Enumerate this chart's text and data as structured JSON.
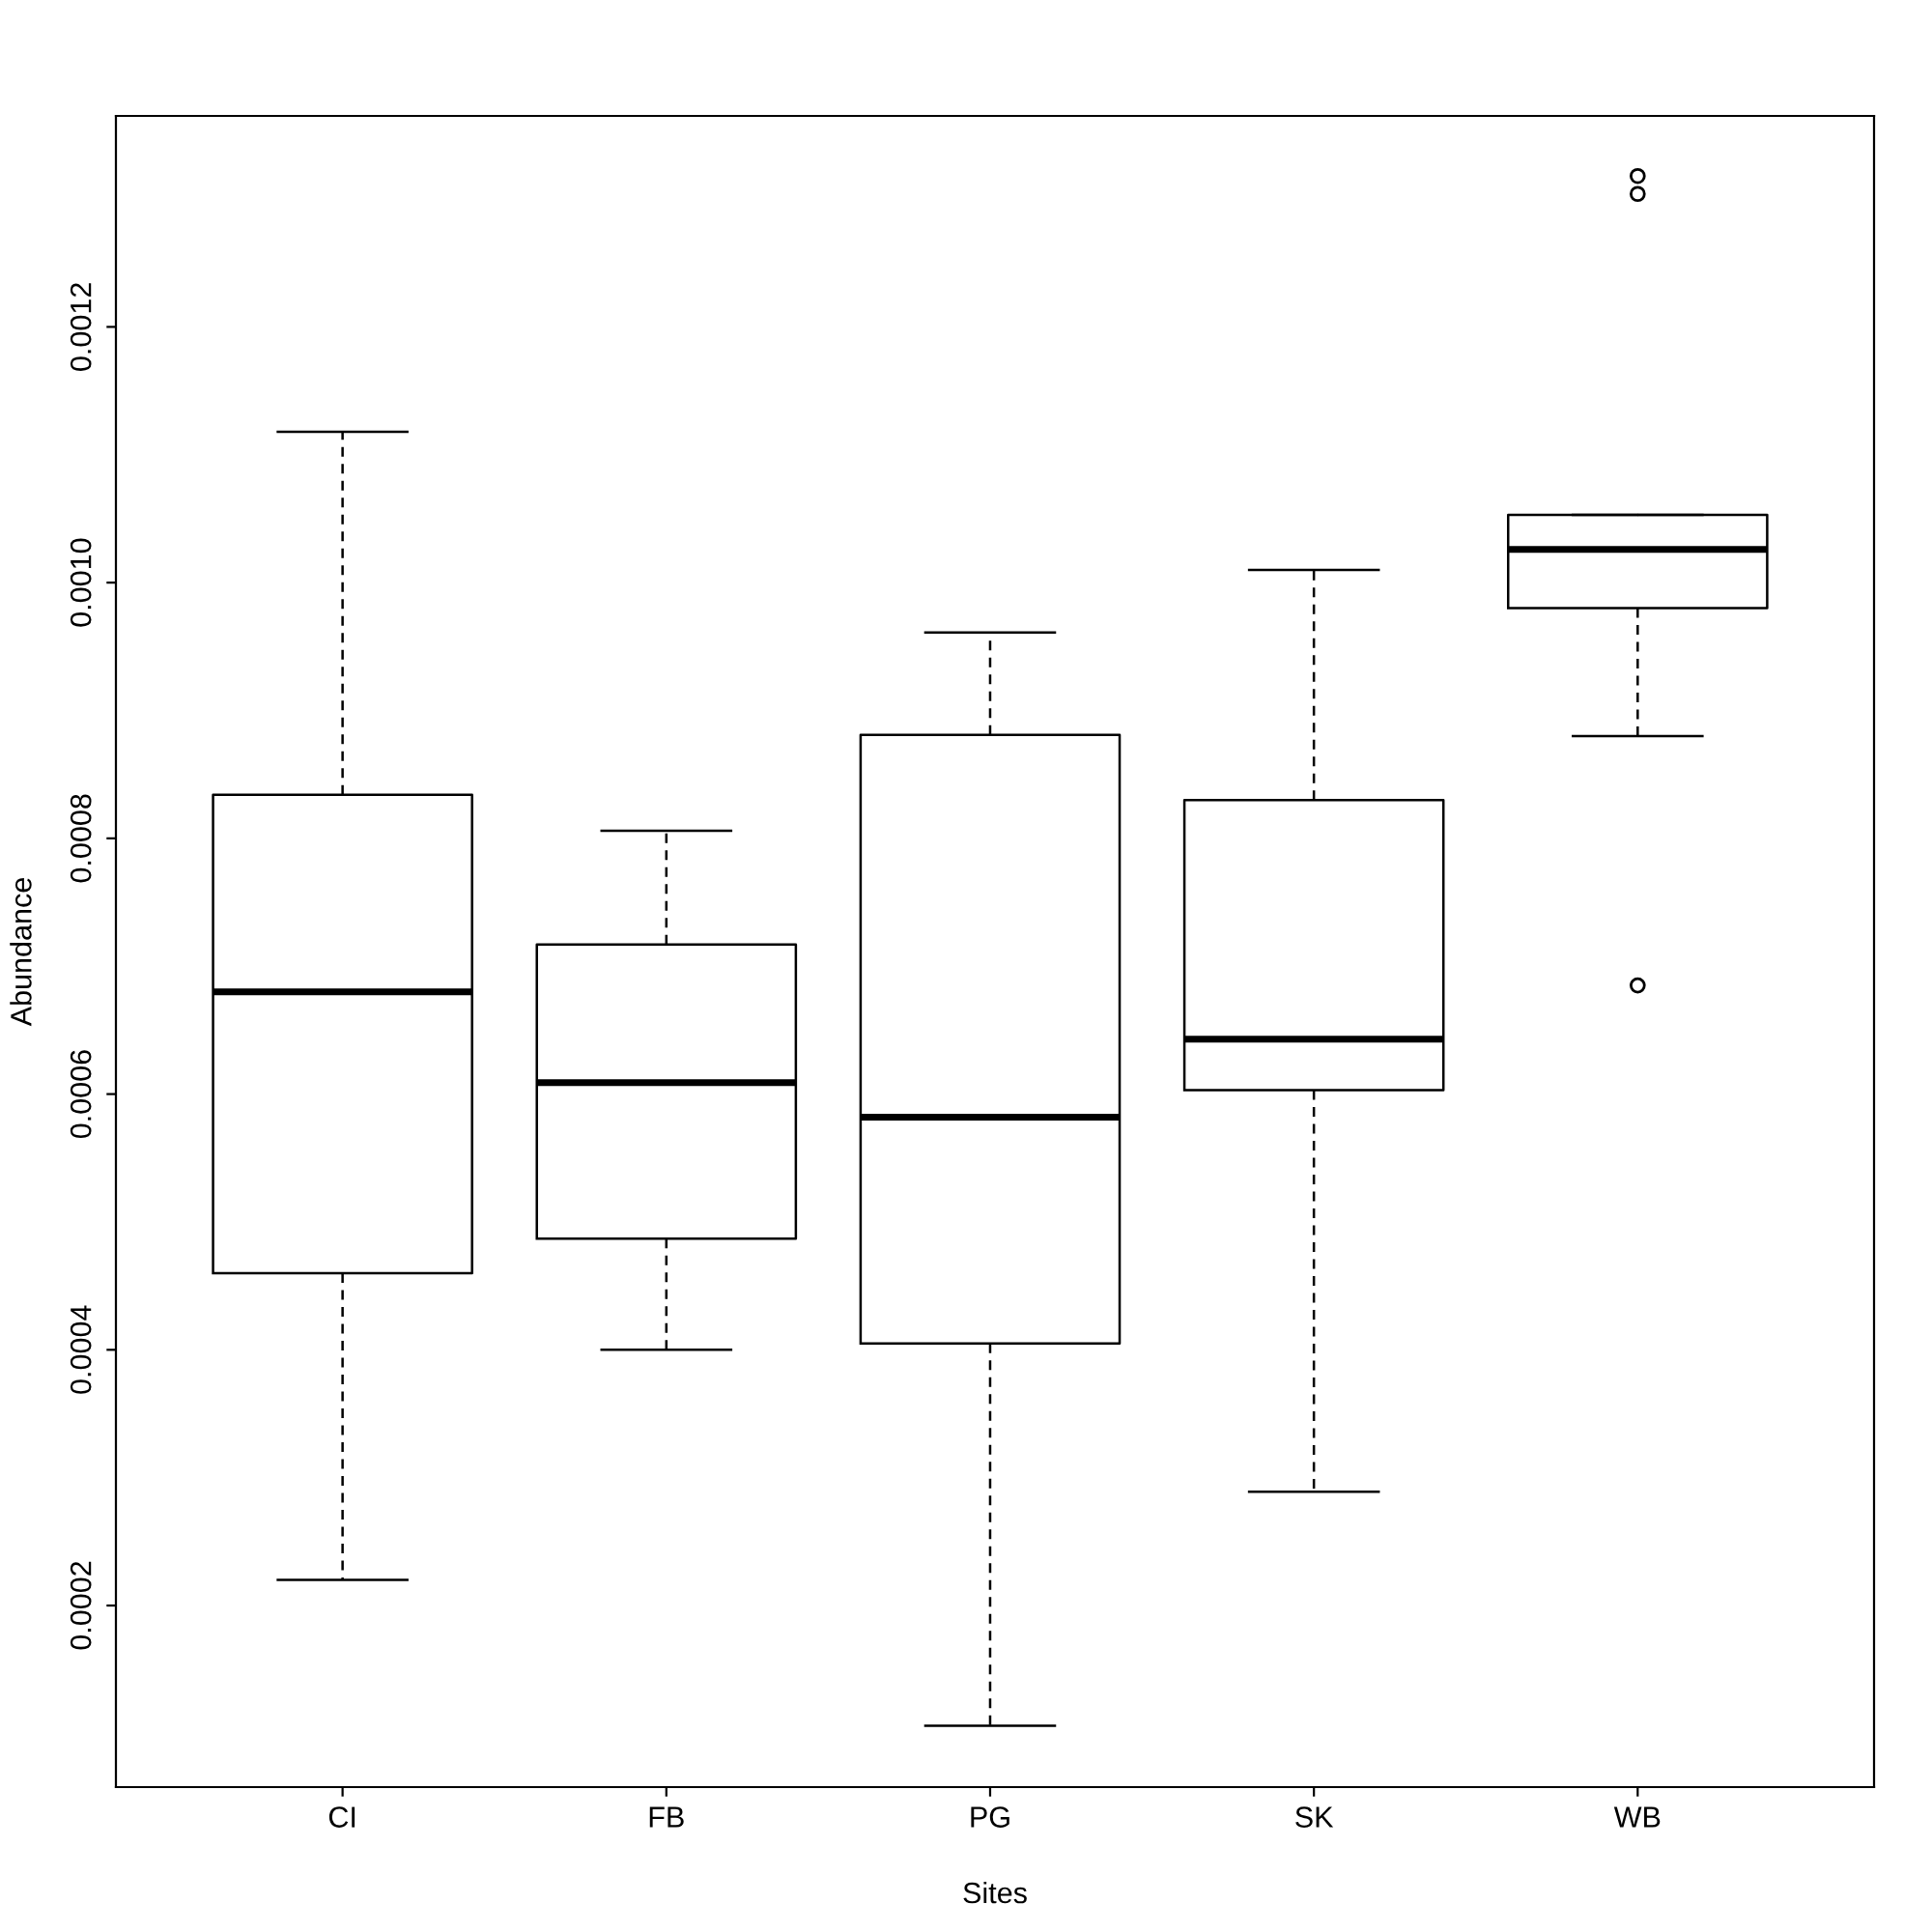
{
  "chart_data": {
    "type": "box",
    "xlabel": "Sites",
    "ylabel": "Abundance",
    "categories": [
      "CI",
      "FB",
      "PG",
      "SK",
      "WB"
    ],
    "boxes": [
      {
        "low": 0.00022,
        "q1": 0.00046,
        "median": 0.00068,
        "q3": 0.000834,
        "high": 0.001118
      },
      {
        "low": 0.0004,
        "q1": 0.000487,
        "median": 0.000609,
        "q3": 0.000717,
        "high": 0.000806
      },
      {
        "low": 0.000106,
        "q1": 0.000405,
        "median": 0.000582,
        "q3": 0.000881,
        "high": 0.000961
      },
      {
        "low": 0.000289,
        "q1": 0.000603,
        "median": 0.000643,
        "q3": 0.00083,
        "high": 0.00101
      },
      {
        "low": 0.00088,
        "q1": 0.00098,
        "median": 0.001026,
        "q3": 0.001053,
        "high": 0.001053,
        "outliers": [
          0.001318,
          0.001304,
          0.000685
        ]
      }
    ],
    "ylim": [
      5.8e-05,
      0.001365
    ],
    "yticks": [
      0.0002,
      0.0004,
      0.0006,
      0.0008,
      {
        "value": 0.001,
        "label": "0.0010"
      },
      0.0012
    ],
    "grid": false,
    "legend": false
  }
}
